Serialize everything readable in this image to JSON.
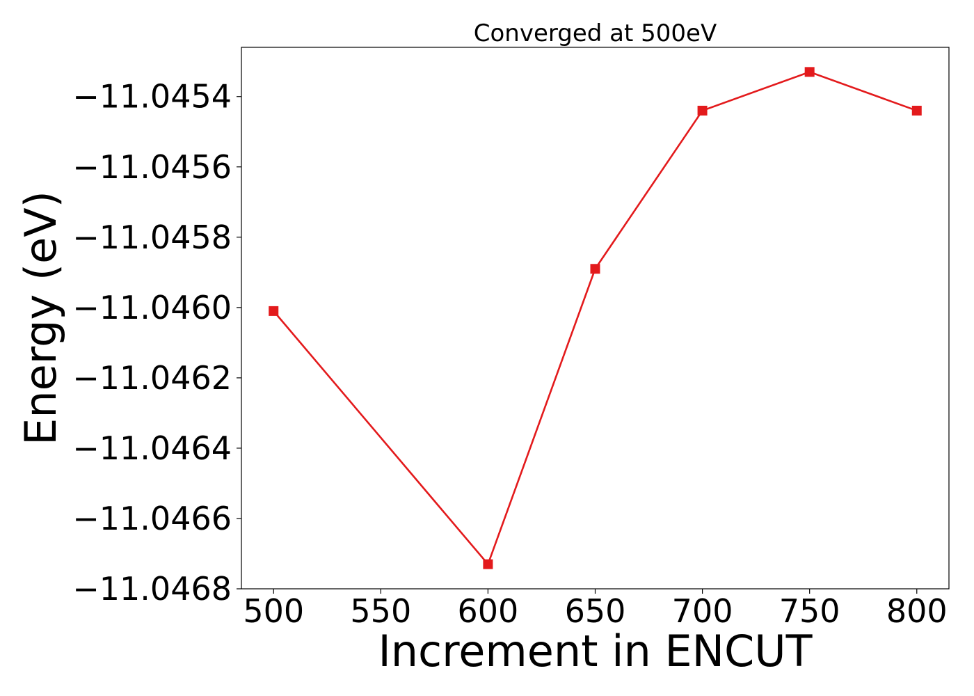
{
  "chart_data": {
    "type": "line",
    "title": "Converged at 500eV",
    "xlabel": "Increment in ENCUT",
    "ylabel": "Energy (eV)",
    "x": [
      500,
      600,
      650,
      700,
      750,
      800
    ],
    "series": [
      {
        "values": [
          -11.04601,
          -11.04673,
          -11.04589,
          -11.04544,
          -11.04533,
          -11.04544
        ],
        "color": "#e31a1c",
        "marker": "square"
      }
    ],
    "xlim": [
      485,
      815
    ],
    "ylim": [
      -11.0468,
      -11.04526
    ],
    "xticks": [
      500,
      550,
      600,
      650,
      700,
      750,
      800
    ],
    "xtick_labels": [
      "500",
      "550",
      "600",
      "650",
      "700",
      "750",
      "800"
    ],
    "yticks": [
      -11.0468,
      -11.0466,
      -11.0464,
      -11.0462,
      -11.046,
      -11.0458,
      -11.0456,
      -11.0454
    ],
    "ytick_labels": [
      "−11.0468",
      "−11.0466",
      "−11.0464",
      "−11.0462",
      "−11.0460",
      "−11.0458",
      "−11.0456",
      "−11.0454"
    ],
    "grid": false,
    "legend": "none"
  }
}
